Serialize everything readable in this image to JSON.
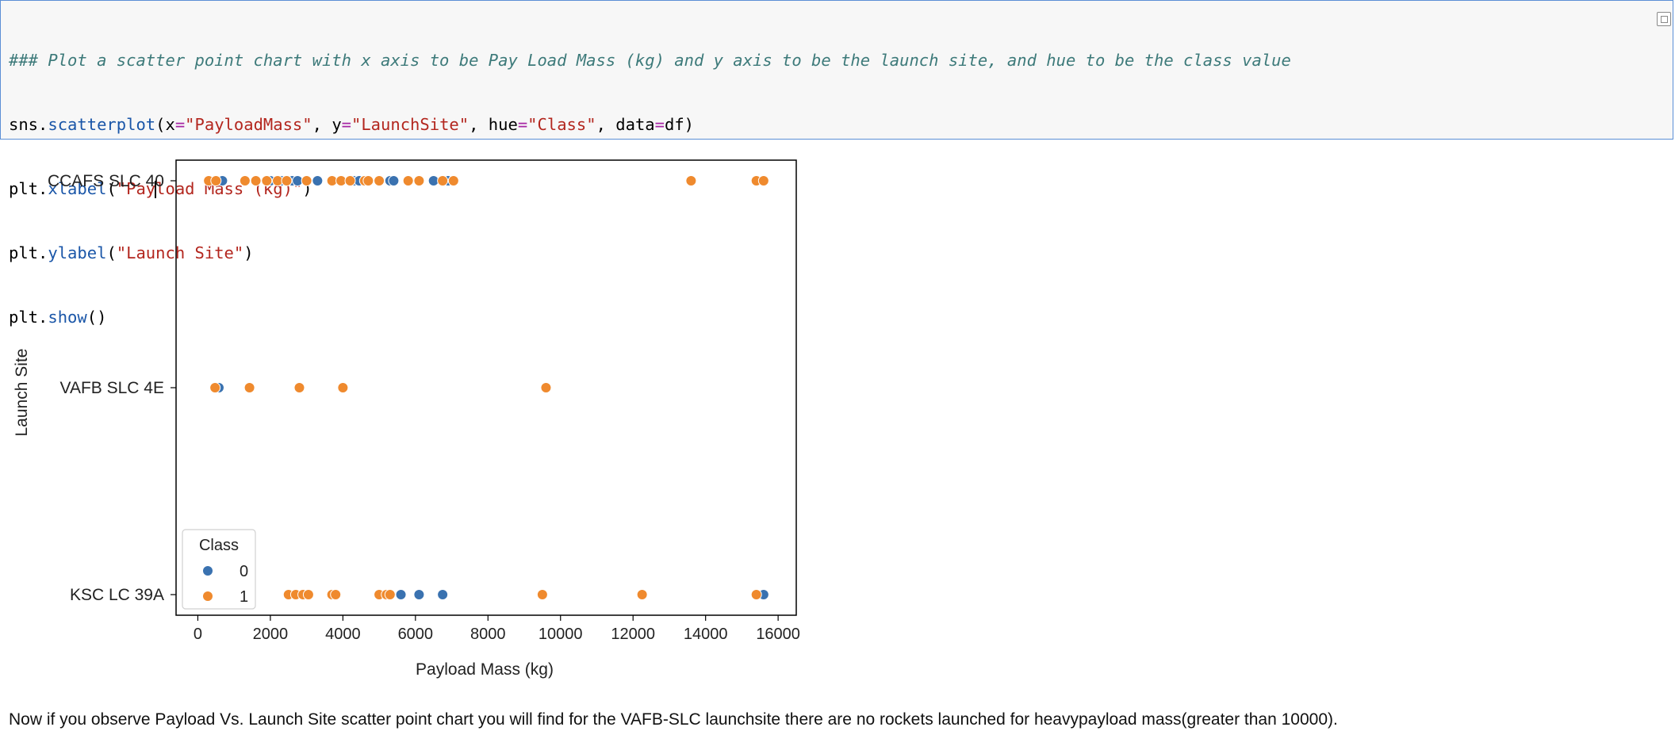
{
  "code_cell": {
    "comment": "### Plot a scatter point chart with x axis to be Pay Load Mass (kg) and y axis to be the launch site, and hue to be the class value",
    "line1": {
      "obj": "sns",
      "fn": "scatterplot",
      "arg_x_key": "x",
      "arg_x_val": "\"PayloadMass\"",
      "arg_y_key": "y",
      "arg_y_val": "\"LaunchSite\"",
      "arg_hue_key": "hue",
      "arg_hue_val": "\"Class\"",
      "arg_data_key": "data",
      "arg_data_val": "df"
    },
    "line2": {
      "obj": "plt",
      "fn": "xlabel",
      "str_before_cursor": "\"Pay",
      "str_after_cursor": "load Mass (kg)\""
    },
    "line3": {
      "obj": "plt",
      "fn": "ylabel",
      "str": "\"Launch Site\""
    },
    "line4": {
      "obj": "plt",
      "fn": "show"
    }
  },
  "icons": {
    "copy": "copy-icon"
  },
  "colors": {
    "class0": "#3a72b0",
    "class1": "#ef8a2e",
    "cell_border": "#5b8fd6"
  },
  "chart_data": {
    "type": "scatter",
    "xlabel": "Payload Mass (kg)",
    "ylabel": "Launch Site",
    "xlim": [
      -600,
      16500
    ],
    "xticks": [
      0,
      2000,
      4000,
      6000,
      8000,
      10000,
      12000,
      14000,
      16000
    ],
    "categories": [
      "CCAFS SLC 40",
      "VAFB SLC 4E",
      "KSC LC 39A"
    ],
    "legend": {
      "title": "Class",
      "entries": [
        "0",
        "1"
      ],
      "placement": "lower-left"
    },
    "grid": false,
    "series": [
      {
        "name": "0",
        "color": "#3a72b0",
        "points": [
          {
            "x": 500,
            "y": "CCAFS SLC 40"
          },
          {
            "x": 677,
            "y": "CCAFS SLC 40"
          },
          {
            "x": 2000,
            "y": "CCAFS SLC 40"
          },
          {
            "x": 2300,
            "y": "CCAFS SLC 40"
          },
          {
            "x": 2600,
            "y": "CCAFS SLC 40"
          },
          {
            "x": 2750,
            "y": "CCAFS SLC 40"
          },
          {
            "x": 3300,
            "y": "CCAFS SLC 40"
          },
          {
            "x": 4300,
            "y": "CCAFS SLC 40"
          },
          {
            "x": 4450,
            "y": "CCAFS SLC 40"
          },
          {
            "x": 5300,
            "y": "CCAFS SLC 40"
          },
          {
            "x": 5400,
            "y": "CCAFS SLC 40"
          },
          {
            "x": 6500,
            "y": "CCAFS SLC 40"
          },
          {
            "x": 6900,
            "y": "CCAFS SLC 40"
          },
          {
            "x": 580,
            "y": "VAFB SLC 4E"
          },
          {
            "x": 5600,
            "y": "KSC LC 39A"
          },
          {
            "x": 6100,
            "y": "KSC LC 39A"
          },
          {
            "x": 6750,
            "y": "KSC LC 39A"
          },
          {
            "x": 15600,
            "y": "KSC LC 39A"
          }
        ]
      },
      {
        "name": "1",
        "color": "#ef8a2e",
        "points": [
          {
            "x": 300,
            "y": "CCAFS SLC 40"
          },
          {
            "x": 500,
            "y": "CCAFS SLC 40"
          },
          {
            "x": 1300,
            "y": "CCAFS SLC 40"
          },
          {
            "x": 1600,
            "y": "CCAFS SLC 40"
          },
          {
            "x": 1900,
            "y": "CCAFS SLC 40"
          },
          {
            "x": 2200,
            "y": "CCAFS SLC 40"
          },
          {
            "x": 2450,
            "y": "CCAFS SLC 40"
          },
          {
            "x": 3000,
            "y": "CCAFS SLC 40"
          },
          {
            "x": 3700,
            "y": "CCAFS SLC 40"
          },
          {
            "x": 3950,
            "y": "CCAFS SLC 40"
          },
          {
            "x": 4200,
            "y": "CCAFS SLC 40"
          },
          {
            "x": 4600,
            "y": "CCAFS SLC 40"
          },
          {
            "x": 4700,
            "y": "CCAFS SLC 40"
          },
          {
            "x": 5000,
            "y": "CCAFS SLC 40"
          },
          {
            "x": 5800,
            "y": "CCAFS SLC 40"
          },
          {
            "x": 6100,
            "y": "CCAFS SLC 40"
          },
          {
            "x": 6750,
            "y": "CCAFS SLC 40"
          },
          {
            "x": 7050,
            "y": "CCAFS SLC 40"
          },
          {
            "x": 13600,
            "y": "CCAFS SLC 40"
          },
          {
            "x": 15400,
            "y": "CCAFS SLC 40"
          },
          {
            "x": 15600,
            "y": "CCAFS SLC 40"
          },
          {
            "x": 475,
            "y": "VAFB SLC 4E"
          },
          {
            "x": 1425,
            "y": "VAFB SLC 4E"
          },
          {
            "x": 2800,
            "y": "VAFB SLC 4E"
          },
          {
            "x": 4000,
            "y": "VAFB SLC 4E"
          },
          {
            "x": 9600,
            "y": "VAFB SLC 4E"
          },
          {
            "x": 2500,
            "y": "KSC LC 39A"
          },
          {
            "x": 2700,
            "y": "KSC LC 39A"
          },
          {
            "x": 2900,
            "y": "KSC LC 39A"
          },
          {
            "x": 3050,
            "y": "KSC LC 39A"
          },
          {
            "x": 3700,
            "y": "KSC LC 39A"
          },
          {
            "x": 3800,
            "y": "KSC LC 39A"
          },
          {
            "x": 5000,
            "y": "KSC LC 39A"
          },
          {
            "x": 5200,
            "y": "KSC LC 39A"
          },
          {
            "x": 5300,
            "y": "KSC LC 39A"
          },
          {
            "x": 9500,
            "y": "KSC LC 39A"
          },
          {
            "x": 12250,
            "y": "KSC LC 39A"
          },
          {
            "x": 15400,
            "y": "KSC LC 39A"
          }
        ]
      }
    ]
  },
  "markdown": {
    "text": "Now if you observe Payload Vs. Launch Site scatter point chart you will find for the VAFB-SLC launchsite there are no rockets launched for heavypayload mass(greater than 10000)."
  }
}
